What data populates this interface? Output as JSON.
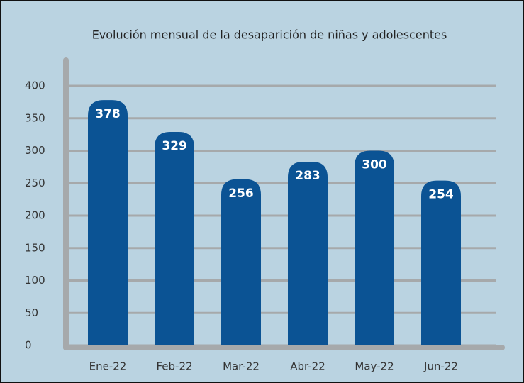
{
  "chart_data": {
    "type": "bar",
    "title": "Evolución mensual de la desaparición de niñas y adolescentes",
    "categories": [
      "Ene-22",
      "Feb-22",
      "Mar-22",
      "Abr-22",
      "May-22",
      "Jun-22"
    ],
    "values": [
      378,
      329,
      256,
      283,
      300,
      254
    ],
    "color": "#0b5394",
    "ylim": [
      0,
      400
    ],
    "yticks": [
      0,
      50,
      100,
      150,
      200,
      250,
      300,
      350,
      400
    ],
    "grid": true
  }
}
